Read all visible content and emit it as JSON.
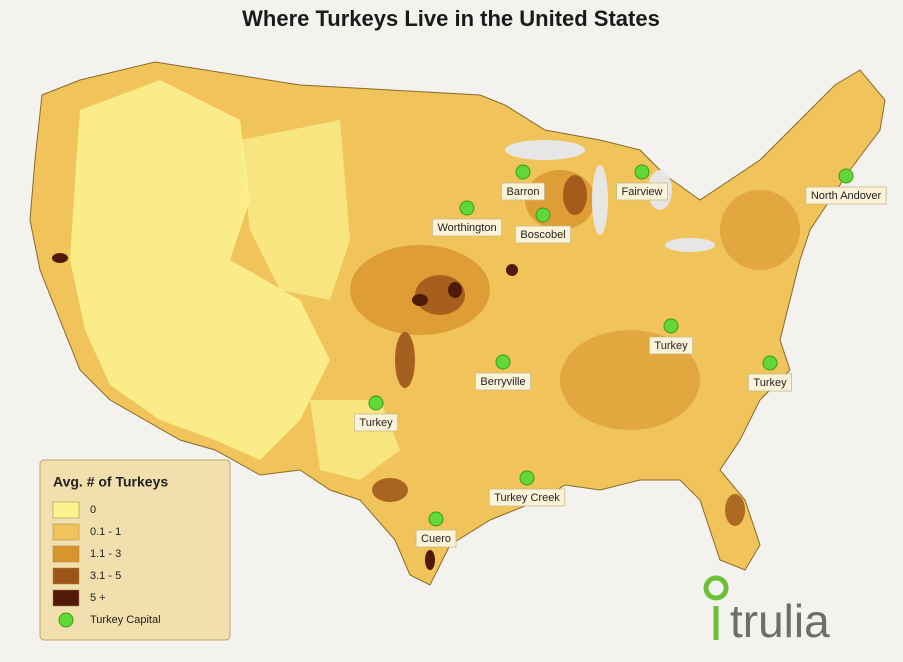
{
  "title": "Where Turkeys Live in the United States",
  "legend": {
    "title": "Avg. # of Turkeys",
    "items": [
      {
        "label": "0",
        "color": "#fbf38e"
      },
      {
        "label": "0.1 - 1",
        "color": "#f0c45a"
      },
      {
        "label": "1.1 - 3",
        "color": "#d9952c"
      },
      {
        "label": "3.1 - 5",
        "color": "#9c5418"
      },
      {
        "label": "5 +",
        "color": "#4f1a08"
      }
    ],
    "capital": {
      "label": "Turkey Capital",
      "color": "#62d838"
    }
  },
  "capitals": [
    {
      "label": "Barron"
    },
    {
      "label": "Fairview"
    },
    {
      "label": "North Andover"
    },
    {
      "label": "Worthington"
    },
    {
      "label": "Boscobel"
    },
    {
      "label": "Turkey"
    },
    {
      "label": "Turkey"
    },
    {
      "label": "Berryville"
    },
    {
      "label": "Turkey"
    },
    {
      "label": "Turkey Creek"
    },
    {
      "label": "Cuero"
    }
  ],
  "logo": "trulia"
}
